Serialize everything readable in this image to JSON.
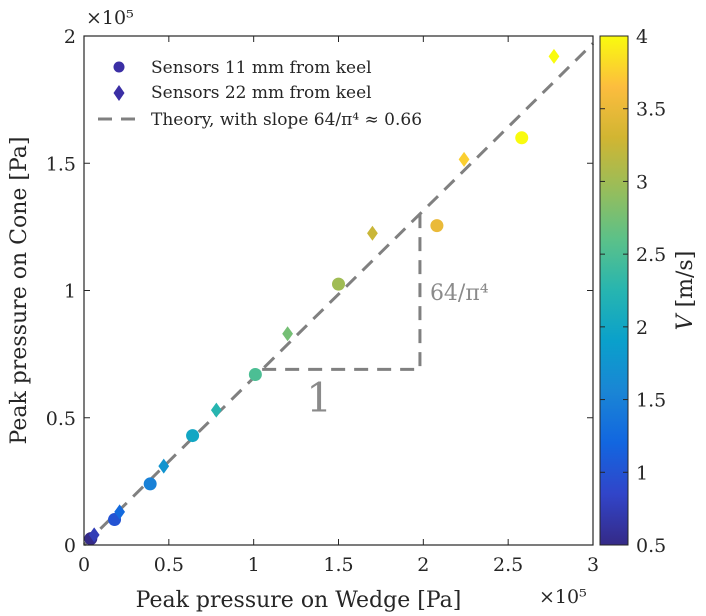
{
  "chart_data": {
    "type": "scatter",
    "xlabel": "Peak pressure on Wedge [Pa]",
    "ylabel": "Peak pressure on Cone [Pa]",
    "x_multiplier": "×10⁵",
    "y_multiplier": "×10⁵",
    "xlim": [
      0,
      300000
    ],
    "ylim": [
      0,
      200000
    ],
    "x_ticks": [
      0,
      50000,
      100000,
      150000,
      200000,
      250000,
      300000
    ],
    "y_ticks": [
      0,
      50000,
      100000,
      150000,
      200000
    ],
    "x_tick_labels": [
      "0",
      "0.5",
      "1",
      "1.5",
      "2",
      "2.5",
      "3"
    ],
    "y_tick_labels": [
      "0",
      "0.5",
      "1",
      "1.5",
      "2"
    ],
    "grid": false,
    "legend_position": "top-left",
    "legend": {
      "series_circles": "Sensors 11 mm from keel",
      "series_diamonds": "Sensors 22 mm from keel",
      "theory_line": "Theory, with slope 64/π⁴ ≈ 0.66"
    },
    "theory": {
      "slope": 0.657,
      "color": "#808080"
    },
    "slope_triangle": {
      "x_start": 105000,
      "x_end": 198000,
      "y_base": 69000,
      "y_top": 130000,
      "run_label": "1",
      "rise_label": "64/π⁴"
    },
    "colorbar": {
      "label_var": "V",
      "label_unit": " [m/s]",
      "min": 0.5,
      "max": 4,
      "ticks": [
        0.5,
        1,
        1.5,
        2,
        2.5,
        3,
        3.5,
        4
      ],
      "tick_labels": [
        "0.5",
        "1",
        "1.5",
        "2",
        "2.5",
        "3",
        "3.5",
        "4"
      ],
      "colormap": "parula"
    },
    "series": [
      {
        "name": "Sensors 11 mm from keel",
        "marker": "circle",
        "points": [
          {
            "x": 4000,
            "y": 2500,
            "v": 0.5
          },
          {
            "x": 18000,
            "y": 10000,
            "v": 1.0
          },
          {
            "x": 39000,
            "y": 24000,
            "v": 1.5
          },
          {
            "x": 64000,
            "y": 43000,
            "v": 2.0
          },
          {
            "x": 101000,
            "y": 67000,
            "v": 2.5
          },
          {
            "x": 150000,
            "y": 102500,
            "v": 3.0
          },
          {
            "x": 208000,
            "y": 125500,
            "v": 3.5
          },
          {
            "x": 258000,
            "y": 160000,
            "v": 4.0
          }
        ]
      },
      {
        "name": "Sensors 22 mm from keel",
        "marker": "diamond",
        "points": [
          {
            "x": 6000,
            "y": 4000,
            "v": 0.75
          },
          {
            "x": 21000,
            "y": 13000,
            "v": 1.25
          },
          {
            "x": 47000,
            "y": 31000,
            "v": 1.75
          },
          {
            "x": 78000,
            "y": 53000,
            "v": 2.25
          },
          {
            "x": 120000,
            "y": 83000,
            "v": 2.75
          },
          {
            "x": 170000,
            "y": 122500,
            "v": 3.25
          },
          {
            "x": 224000,
            "y": 151500,
            "v": 3.75
          },
          {
            "x": 277000,
            "y": 192000,
            "v": 4.0
          }
        ]
      }
    ]
  }
}
